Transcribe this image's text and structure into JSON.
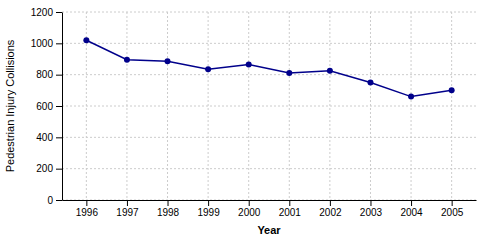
{
  "chart_data": {
    "type": "line",
    "x": [
      1996,
      1997,
      1998,
      1999,
      2000,
      2001,
      2002,
      2003,
      2004,
      2005
    ],
    "values": [
      1020,
      895,
      885,
      835,
      865,
      810,
      825,
      750,
      660,
      700
    ],
    "color": "#00008B",
    "marker": "circle",
    "xlabel": "Year",
    "ylabel": "Pedestrian Injury Collisions",
    "xlim": [
      1995.4,
      2005.6
    ],
    "xticks": [
      1996,
      1997,
      1998,
      1999,
      2000,
      2001,
      2002,
      2003,
      2004,
      2005
    ],
    "ylim": [
      0,
      1200
    ],
    "yticks": [
      0,
      200,
      400,
      600,
      800,
      1000,
      1200
    ],
    "grid": true
  }
}
